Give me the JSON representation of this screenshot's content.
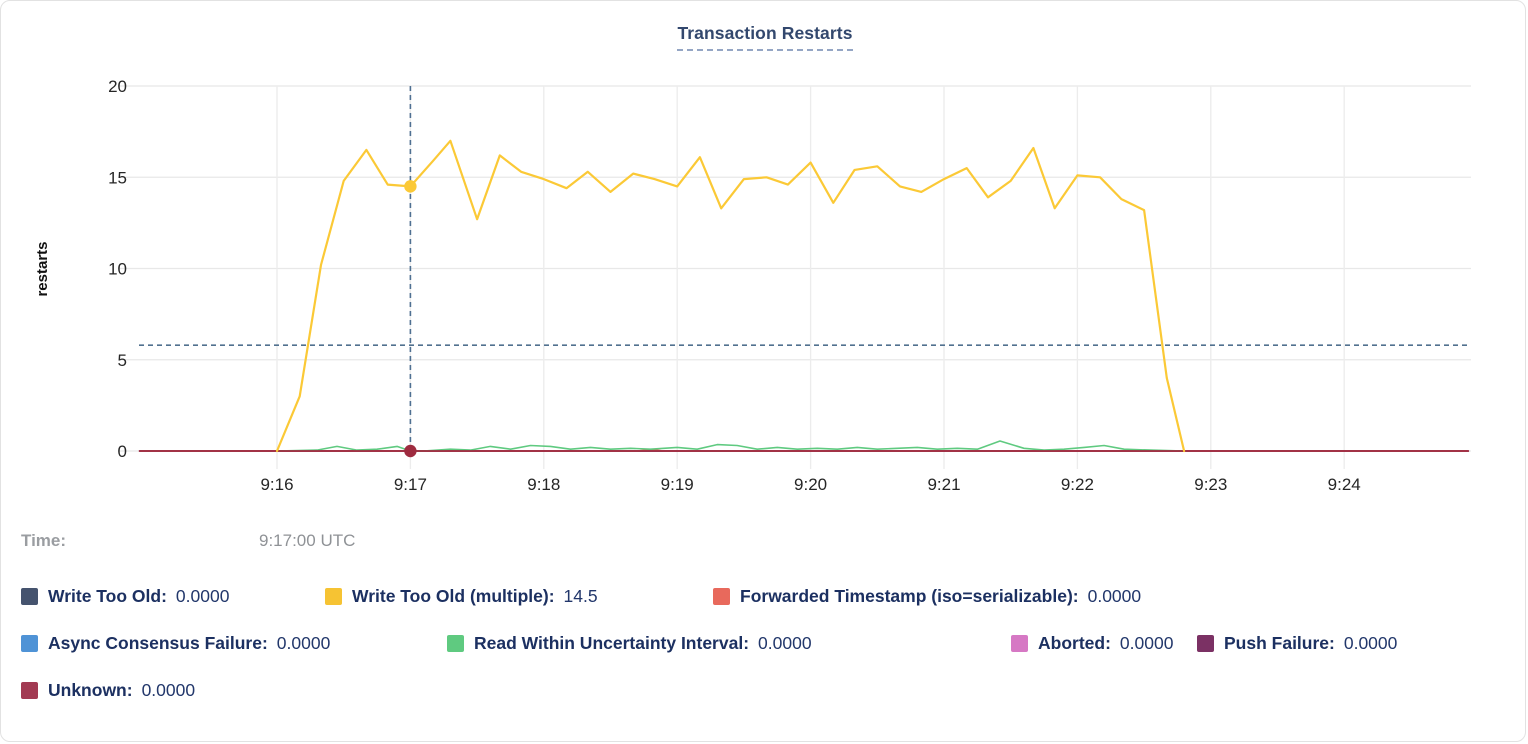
{
  "chart_data": {
    "type": "line",
    "title": "Transaction Restarts",
    "ylabel": "restarts",
    "ylim": [
      0,
      20
    ],
    "grid": true,
    "yticks": [
      {
        "v": 0,
        "label": "0"
      },
      {
        "v": 5,
        "label": "5"
      },
      {
        "v": 10,
        "label": "10"
      },
      {
        "v": 15,
        "label": "15"
      },
      {
        "v": 20,
        "label": "20"
      }
    ],
    "xticks": [
      {
        "t": 16,
        "label": "9:16"
      },
      {
        "t": 17,
        "label": "9:17"
      },
      {
        "t": 18,
        "label": "9:18"
      },
      {
        "t": 19,
        "label": "9:19"
      },
      {
        "t": 20,
        "label": "9:20"
      },
      {
        "t": 21,
        "label": "9:21"
      },
      {
        "t": 22,
        "label": "9:22"
      },
      {
        "t": 23,
        "label": "9:23"
      },
      {
        "t": 24,
        "label": "9:24"
      }
    ],
    "x_domain_minutes": [
      14.97,
      24.95
    ],
    "series": [
      {
        "name": "Write Too Old",
        "color": "#45536e",
        "width": 1.5,
        "points": [
          [
            14.97,
            0
          ],
          [
            24.93,
            0
          ]
        ]
      },
      {
        "name": "Write Too Old (multiple)",
        "color": "#fbc936",
        "width": 2.2,
        "points": [
          [
            16.0,
            0
          ],
          [
            16.17,
            3.0
          ],
          [
            16.33,
            10.2
          ],
          [
            16.5,
            14.8
          ],
          [
            16.67,
            16.5
          ],
          [
            16.83,
            14.6
          ],
          [
            17.0,
            14.5
          ],
          [
            17.17,
            15.9
          ],
          [
            17.3,
            17.0
          ],
          [
            17.5,
            12.7
          ],
          [
            17.67,
            16.2
          ],
          [
            17.83,
            15.3
          ],
          [
            18.0,
            14.9
          ],
          [
            18.17,
            14.4
          ],
          [
            18.33,
            15.3
          ],
          [
            18.5,
            14.2
          ],
          [
            18.67,
            15.2
          ],
          [
            18.83,
            14.9
          ],
          [
            19.0,
            14.5
          ],
          [
            19.17,
            16.1
          ],
          [
            19.33,
            13.3
          ],
          [
            19.5,
            14.9
          ],
          [
            19.67,
            15.0
          ],
          [
            19.83,
            14.6
          ],
          [
            20.0,
            15.8
          ],
          [
            20.17,
            13.6
          ],
          [
            20.33,
            15.4
          ],
          [
            20.5,
            15.6
          ],
          [
            20.67,
            14.5
          ],
          [
            20.83,
            14.2
          ],
          [
            21.0,
            14.9
          ],
          [
            21.17,
            15.5
          ],
          [
            21.33,
            13.9
          ],
          [
            21.5,
            14.8
          ],
          [
            21.67,
            16.6
          ],
          [
            21.83,
            13.3
          ],
          [
            22.0,
            15.1
          ],
          [
            22.17,
            15.0
          ],
          [
            22.33,
            13.8
          ],
          [
            22.5,
            13.2
          ],
          [
            22.67,
            4.0
          ],
          [
            22.8,
            0
          ]
        ]
      },
      {
        "name": "Forwarded Timestamp (iso=serializable)",
        "color": "#e8695c",
        "width": 1.5,
        "points": [
          [
            14.97,
            0
          ],
          [
            18.7,
            0
          ],
          [
            18.8,
            0.08
          ],
          [
            18.9,
            0
          ],
          [
            24.93,
            0
          ]
        ]
      },
      {
        "name": "Async Consensus Failure",
        "color": "#4f93d6",
        "width": 1.5,
        "points": [
          [
            14.97,
            0
          ],
          [
            24.93,
            0
          ]
        ]
      },
      {
        "name": "Read Within Uncertainty Interval",
        "color": "#5fca80",
        "width": 1.6,
        "points": [
          [
            16.0,
            0
          ],
          [
            16.3,
            0.05
          ],
          [
            16.45,
            0.25
          ],
          [
            16.6,
            0.05
          ],
          [
            16.75,
            0.1
          ],
          [
            16.9,
            0.25
          ],
          [
            17.0,
            0
          ],
          [
            17.1,
            0
          ],
          [
            17.3,
            0.1
          ],
          [
            17.45,
            0.05
          ],
          [
            17.6,
            0.25
          ],
          [
            17.75,
            0.1
          ],
          [
            17.9,
            0.3
          ],
          [
            18.05,
            0.25
          ],
          [
            18.2,
            0.1
          ],
          [
            18.35,
            0.2
          ],
          [
            18.5,
            0.1
          ],
          [
            18.65,
            0.15
          ],
          [
            18.8,
            0.1
          ],
          [
            19.0,
            0.2
          ],
          [
            19.15,
            0.1
          ],
          [
            19.3,
            0.35
          ],
          [
            19.45,
            0.3
          ],
          [
            19.6,
            0.1
          ],
          [
            19.75,
            0.2
          ],
          [
            19.9,
            0.1
          ],
          [
            20.05,
            0.15
          ],
          [
            20.2,
            0.1
          ],
          [
            20.35,
            0.2
          ],
          [
            20.5,
            0.1
          ],
          [
            20.65,
            0.15
          ],
          [
            20.8,
            0.2
          ],
          [
            20.95,
            0.1
          ],
          [
            21.1,
            0.15
          ],
          [
            21.25,
            0.1
          ],
          [
            21.42,
            0.55
          ],
          [
            21.6,
            0.15
          ],
          [
            21.75,
            0.05
          ],
          [
            21.9,
            0.1
          ],
          [
            22.05,
            0.2
          ],
          [
            22.2,
            0.3
          ],
          [
            22.35,
            0.1
          ],
          [
            22.55,
            0.05
          ],
          [
            22.8,
            0
          ]
        ]
      },
      {
        "name": "Aborted",
        "color": "#d678c4",
        "width": 1.5,
        "points": [
          [
            14.97,
            0
          ],
          [
            24.93,
            0
          ]
        ]
      },
      {
        "name": "Push Failure",
        "color": "#7b3164",
        "width": 1.5,
        "points": [
          [
            14.97,
            0
          ],
          [
            24.93,
            0
          ]
        ]
      },
      {
        "name": "Unknown",
        "color": "#9e2b3f",
        "width": 1.8,
        "points": [
          [
            14.97,
            0
          ],
          [
            24.93,
            0
          ]
        ]
      }
    ],
    "crosshair": {
      "x_minutes": 17.0,
      "hover_value": 5.8,
      "dots": [
        {
          "series_index": 1,
          "value": 14.5
        },
        {
          "series_index": 7,
          "value": 0
        }
      ]
    }
  },
  "time": {
    "label": "Time:",
    "value": "9:17:00 UTC"
  },
  "legend": {
    "items": [
      {
        "label": "Write Too Old:",
        "value": "0.0000",
        "color": "#45536e"
      },
      {
        "label": "Write Too Old (multiple):",
        "value": "14.5",
        "color": "#f6c333"
      },
      {
        "label": "Forwarded Timestamp (iso=serializable):",
        "value": "0.0000",
        "color": "#e8695c"
      },
      {
        "label": "Async Consensus Failure:",
        "value": "0.0000",
        "color": "#4f93d6"
      },
      {
        "label": "Read Within Uncertainty Interval:",
        "value": "0.0000",
        "color": "#5fca80"
      },
      {
        "label": "Aborted:",
        "value": "0.0000",
        "color": "#d678c4"
      },
      {
        "label": "Push Failure:",
        "value": "0.0000",
        "color": "#7b3164"
      },
      {
        "label": "Unknown:",
        "value": "0.0000",
        "color": "#a23a52"
      }
    ]
  }
}
